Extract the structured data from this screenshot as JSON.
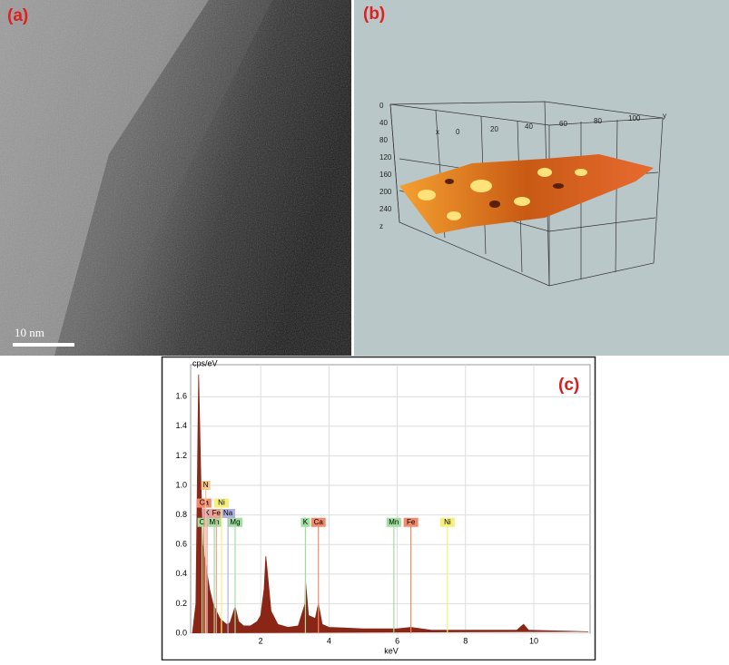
{
  "panels": {
    "a": {
      "label": "(a)",
      "scale_bar": "10 nm"
    },
    "b": {
      "label": "(b)",
      "z_labels": [
        "0",
        "40",
        "80",
        "120",
        "160",
        "200",
        "240",
        "z"
      ],
      "top_labels": [
        "0",
        "20",
        "40",
        "60",
        "80",
        "100",
        "y"
      ],
      "x_label": "x"
    },
    "c": {
      "label": "(c)"
    }
  },
  "chart_data": {
    "type": "area",
    "y_label": "cps/eV",
    "x_label": "keV",
    "color": "#8b2616",
    "x": [
      0.0,
      0.1,
      0.18,
      0.25,
      0.3,
      0.4,
      0.5,
      0.6,
      0.7,
      0.8,
      0.9,
      1.0,
      1.1,
      1.25,
      1.35,
      1.5,
      1.7,
      1.9,
      2.0,
      2.1,
      2.15,
      2.2,
      2.3,
      2.5,
      2.8,
      3.1,
      3.3,
      3.31,
      3.4,
      3.6,
      3.69,
      3.8,
      4.0,
      5.0,
      6.0,
      6.4,
      7.0,
      8.0,
      9.5,
      9.7,
      9.85,
      11.6
    ],
    "values": [
      0,
      0.2,
      1.75,
      1.0,
      0.6,
      0.45,
      0.3,
      0.2,
      0.15,
      0.1,
      0.08,
      0.06,
      0.07,
      0.18,
      0.08,
      0.05,
      0.05,
      0.08,
      0.12,
      0.3,
      0.52,
      0.4,
      0.15,
      0.06,
      0.04,
      0.05,
      0.2,
      0.36,
      0.12,
      0.1,
      0.2,
      0.06,
      0.04,
      0.03,
      0.03,
      0.04,
      0.02,
      0.02,
      0.02,
      0.06,
      0.02,
      0.01
    ],
    "xlim": [
      0,
      11.65
    ],
    "ylim": [
      0,
      1.8
    ],
    "xticks": [
      2,
      4,
      6,
      8,
      10
    ],
    "yticks": [
      {
        "value": 0,
        "label": "0.0"
      },
      0.2,
      0.4,
      0.6,
      0.8,
      {
        "value": 1,
        "label": "1.0"
      },
      1.2,
      1.4,
      1.6
    ],
    "grid": true,
    "element_lines": [
      {
        "label": "C",
        "x": 0.28,
        "y": 0.75,
        "color": "#9fe09f"
      },
      {
        "label": "Mn",
        "x": 0.64,
        "y": 0.75,
        "color": "#9fe09f"
      },
      {
        "label": "Mg",
        "x": 1.25,
        "y": 0.75,
        "color": "#9fe09f"
      },
      {
        "label": "K",
        "x": 3.31,
        "y": 0.75,
        "color": "#9fe09f"
      },
      {
        "label": "Ca",
        "x": 3.69,
        "y": 0.75,
        "color": "#f08a6a"
      },
      {
        "label": "Mn",
        "x": 5.9,
        "y": 0.75,
        "color": "#9fe09f"
      },
      {
        "label": "Fe",
        "x": 6.4,
        "y": 0.75,
        "color": "#f08a6a"
      },
      {
        "label": "Ni",
        "x": 7.47,
        "y": 0.75,
        "color": "#f4f07a"
      },
      {
        "label": "K",
        "x": 0.43,
        "y": 0.81,
        "color": "#d8a8c8"
      },
      {
        "label": "Fe",
        "x": 0.7,
        "y": 0.81,
        "color": "#f0a090"
      },
      {
        "label": "Na",
        "x": 1.04,
        "y": 0.81,
        "color": "#b0b0e0"
      },
      {
        "label": "Ca",
        "x": 0.34,
        "y": 0.88,
        "color": "#f08a6a"
      },
      {
        "label": "Ni",
        "x": 0.85,
        "y": 0.88,
        "color": "#f4f07a"
      },
      {
        "label": "N",
        "x": 0.39,
        "y": 1.0,
        "color": "#f4c890"
      }
    ]
  }
}
